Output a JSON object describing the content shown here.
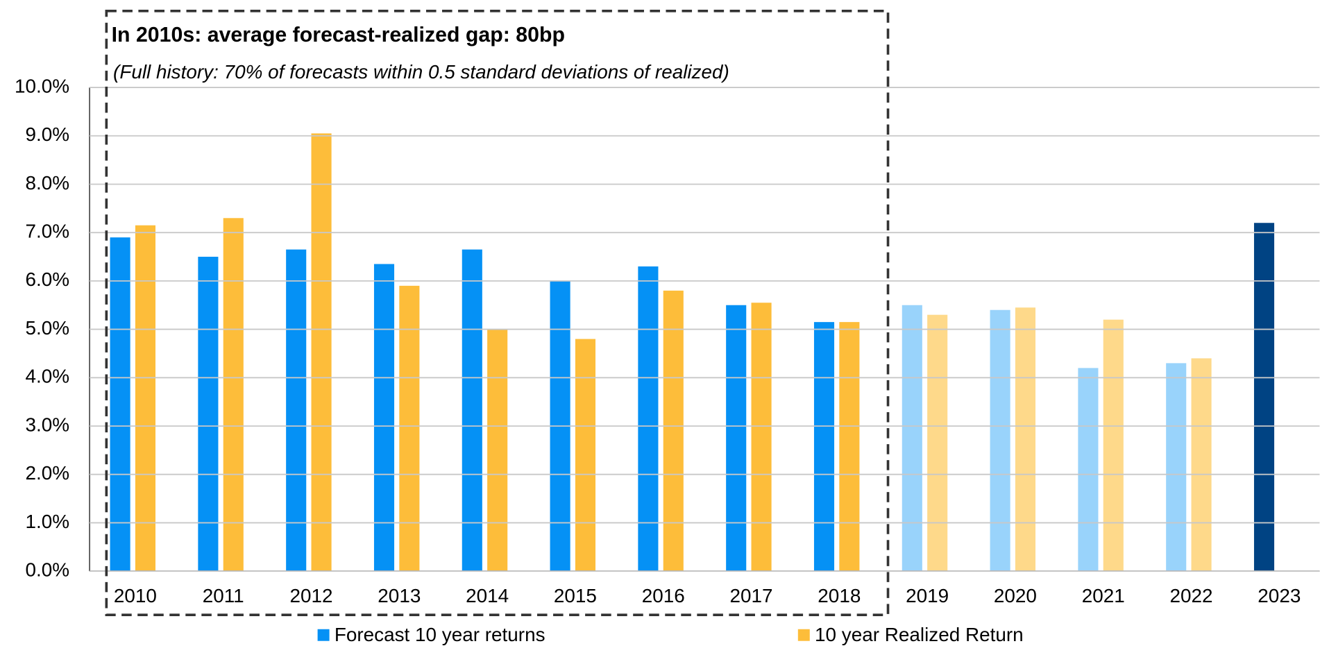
{
  "chart_data": {
    "type": "bar",
    "annotations": [
      "In 2010s: average forecast-realized gap: 80bp",
      "(Full history: 70% of forecasts within 0.5 standard deviations of realized)"
    ],
    "categories": [
      "2010",
      "2011",
      "2012",
      "2013",
      "2014",
      "2015",
      "2016",
      "2017",
      "2018",
      "2019",
      "2020",
      "2021",
      "2022",
      "2023"
    ],
    "series": [
      {
        "name": "Forecast 10 year returns",
        "color": "#0591f5",
        "colors": [
          "#0591f5",
          "#0591f5",
          "#0591f5",
          "#0591f5",
          "#0591f5",
          "#0591f5",
          "#0591f5",
          "#0591f5",
          "#0591f5",
          "#99d3fb",
          "#99d3fb",
          "#99d3fb",
          "#99d3fb",
          "#004383"
        ],
        "values": [
          6.9,
          6.5,
          6.65,
          6.35,
          6.65,
          6.0,
          6.3,
          5.5,
          5.15,
          5.5,
          5.4,
          4.2,
          4.3,
          7.2
        ]
      },
      {
        "name": "10 year Realized Return",
        "color": "#fdbd3a",
        "colors": [
          "#fdbd3a",
          "#fdbd3a",
          "#fdbd3a",
          "#fdbd3a",
          "#fdbd3a",
          "#fdbd3a",
          "#fdbd3a",
          "#fdbd3a",
          "#fdbd3a",
          "#fed98a",
          "#fed98a",
          "#fed98a",
          "#fed98a",
          "#fed98a"
        ],
        "values": [
          7.15,
          7.3,
          9.05,
          5.9,
          5.0,
          4.8,
          5.8,
          5.55,
          5.15,
          5.3,
          5.45,
          5.2,
          4.4,
          null
        ]
      }
    ],
    "ylim": [
      0,
      10
    ],
    "yticks": [
      {
        "value": 0,
        "label": "0.0%"
      },
      {
        "value": 1,
        "label": "1.0%"
      },
      {
        "value": 2,
        "label": "2.0%"
      },
      {
        "value": 3,
        "label": "3.0%"
      },
      {
        "value": 4,
        "label": "4.0%"
      },
      {
        "value": 5,
        "label": "5.0%"
      },
      {
        "value": 6,
        "label": "6.0%"
      },
      {
        "value": 7,
        "label": "7.0%"
      },
      {
        "value": 8,
        "label": "8.0%"
      },
      {
        "value": 9,
        "label": "9.0%"
      },
      {
        "value": 10,
        "label": "10.0%"
      }
    ],
    "grid": true
  }
}
